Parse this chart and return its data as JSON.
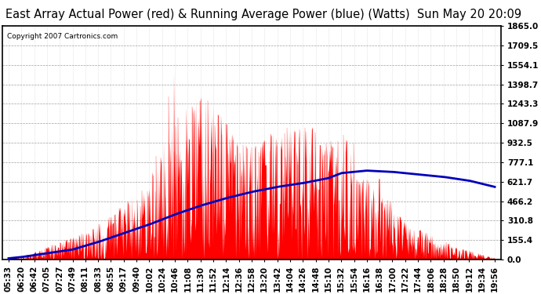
{
  "title": "East Array Actual Power (red) & Running Average Power (blue) (Watts)  Sun May 20 20:09",
  "copyright": "Copyright 2007 Cartronics.com",
  "yticks": [
    0.0,
    155.4,
    310.8,
    466.2,
    621.7,
    777.1,
    932.5,
    1087.9,
    1243.3,
    1398.7,
    1554.1,
    1709.5,
    1865.0
  ],
  "ylim": [
    0.0,
    1865.0
  ],
  "xtick_labels": [
    "05:33",
    "06:20",
    "06:42",
    "07:05",
    "07:27",
    "07:49",
    "08:11",
    "08:33",
    "08:55",
    "09:17",
    "09:40",
    "10:02",
    "10:24",
    "10:46",
    "11:08",
    "11:30",
    "11:52",
    "12:14",
    "12:36",
    "12:58",
    "13:20",
    "13:42",
    "14:04",
    "14:26",
    "14:48",
    "15:10",
    "15:32",
    "15:54",
    "16:16",
    "16:38",
    "17:00",
    "17:22",
    "17:44",
    "18:06",
    "18:28",
    "18:50",
    "19:12",
    "19:34",
    "19:56"
  ],
  "bg_color": "#ffffff",
  "plot_bg_color": "#ffffff",
  "grid_color": "#aaaaaa",
  "actual_color": "#ff0000",
  "avg_color": "#0000bb",
  "title_fontsize": 10.5,
  "tick_fontsize": 7.5
}
